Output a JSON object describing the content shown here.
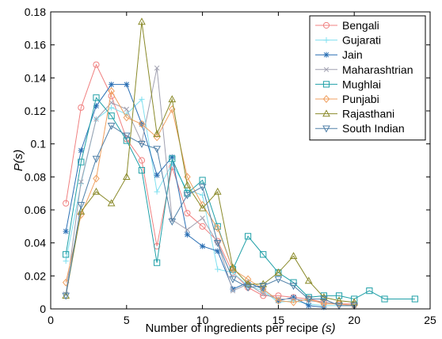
{
  "chart_data": {
    "type": "line",
    "xlabel": "Number of ingredients per recipe",
    "xlabel_symbol": "(s)",
    "ylabel": "P",
    "ylabel_symbol": "(s)",
    "xlim": [
      0,
      25
    ],
    "ylim": [
      0,
      0.18
    ],
    "xticks": [
      0,
      5,
      10,
      15,
      20,
      25
    ],
    "yticks": [
      0,
      0.02,
      0.04,
      0.06,
      0.08,
      0.1,
      0.12,
      0.14,
      0.16,
      0.18
    ],
    "grid": false,
    "legend_position": "top-right",
    "series": [
      {
        "name": "Bengali",
        "color": "#f08080",
        "marker": "circle",
        "x": [
          1,
          2,
          3,
          4,
          5,
          6,
          7,
          8,
          9,
          10,
          11,
          12,
          13,
          14,
          15,
          16,
          17,
          18,
          19,
          20
        ],
        "y": [
          0.064,
          0.122,
          0.148,
          0.129,
          0.103,
          0.09,
          0.038,
          0.086,
          0.058,
          0.05,
          0.041,
          0.022,
          0.013,
          0.008,
          0.008,
          0.007,
          0.006,
          0.004,
          0.003,
          0.003
        ]
      },
      {
        "name": "Gujarati",
        "color": "#80e0f0",
        "marker": "plus",
        "x": [
          1,
          2,
          3,
          4,
          5,
          6,
          7,
          8,
          9,
          10,
          11,
          12,
          13,
          14,
          15,
          16,
          17,
          18,
          19,
          20
        ],
        "y": [
          0.029,
          0.076,
          0.115,
          0.122,
          0.118,
          0.127,
          0.071,
          0.088,
          0.072,
          0.069,
          0.024,
          0.022,
          0.014,
          0.011,
          0.004,
          0.005,
          0.003,
          0.002,
          0.002,
          0.002
        ]
      },
      {
        "name": "Jain",
        "color": "#2a6fb4",
        "marker": "star",
        "x": [
          1,
          2,
          3,
          4,
          5,
          6,
          7,
          8,
          9,
          10,
          11,
          12,
          13,
          14,
          15,
          16,
          17,
          18
        ],
        "y": [
          0.047,
          0.096,
          0.123,
          0.136,
          0.136,
          0.112,
          0.081,
          0.092,
          0.045,
          0.038,
          0.035,
          0.012,
          0.016,
          0.012,
          0.005,
          0.007,
          0.002,
          0.001
        ]
      },
      {
        "name": "Maharashtrian",
        "color": "#a0a0b0",
        "marker": "x",
        "x": [
          1,
          2,
          3,
          4,
          5,
          6,
          7,
          8,
          9,
          10,
          11,
          12,
          13,
          14,
          15,
          16,
          17,
          18,
          19,
          20
        ],
        "y": [
          0.009,
          0.077,
          0.115,
          0.125,
          0.121,
          0.101,
          0.146,
          0.054,
          0.048,
          0.055,
          0.04,
          0.011,
          0.015,
          0.009,
          0.006,
          0.006,
          0.005,
          0.004,
          0.003,
          0.002
        ]
      },
      {
        "name": "Mughlai",
        "color": "#20a0a8",
        "marker": "square",
        "x": [
          1,
          2,
          3,
          4,
          5,
          6,
          7,
          8,
          9,
          10,
          11,
          12,
          13,
          14,
          15,
          16,
          17,
          18,
          19,
          20,
          21,
          22,
          24
        ],
        "y": [
          0.033,
          0.089,
          0.128,
          0.117,
          0.102,
          0.084,
          0.028,
          0.091,
          0.07,
          0.078,
          0.05,
          0.024,
          0.044,
          0.033,
          0.022,
          0.016,
          0.007,
          0.008,
          0.008,
          0.006,
          0.011,
          0.006,
          0.006
        ]
      },
      {
        "name": "Punjabi",
        "color": "#f0a060",
        "marker": "diamond",
        "x": [
          1,
          2,
          3,
          4,
          5,
          6,
          7,
          8,
          9,
          10,
          11,
          12,
          13,
          14,
          15,
          16,
          17,
          18,
          19,
          20
        ],
        "y": [
          0.016,
          0.057,
          0.079,
          0.132,
          0.116,
          0.112,
          0.104,
          0.121,
          0.08,
          0.063,
          0.049,
          0.024,
          0.018,
          0.012,
          0.005,
          0.004,
          0.006,
          0.003,
          0.003,
          0.002
        ]
      },
      {
        "name": "Rajasthani",
        "color": "#8a8a2a",
        "marker": "triangle-up",
        "x": [
          1,
          2,
          3,
          4,
          5,
          6,
          7,
          8,
          9,
          10,
          11,
          12,
          13,
          14,
          15,
          16,
          17,
          18,
          19,
          20
        ],
        "y": [
          0.008,
          0.059,
          0.071,
          0.064,
          0.08,
          0.174,
          0.106,
          0.127,
          0.075,
          0.061,
          0.071,
          0.025,
          0.015,
          0.015,
          0.022,
          0.032,
          0.017,
          0.007,
          0.005,
          0.004
        ]
      },
      {
        "name": "South Indian",
        "color": "#5080a8",
        "marker": "triangle-down",
        "x": [
          1,
          2,
          3,
          4,
          5,
          6,
          7,
          8,
          9,
          10,
          11,
          12,
          13,
          14,
          15,
          16,
          17,
          18,
          19,
          20
        ],
        "y": [
          0.008,
          0.063,
          0.091,
          0.111,
          0.105,
          0.1,
          0.097,
          0.053,
          0.069,
          0.074,
          0.04,
          0.018,
          0.013,
          0.014,
          0.018,
          0.014,
          0.006,
          0.006,
          0.002,
          0.002
        ]
      }
    ]
  }
}
